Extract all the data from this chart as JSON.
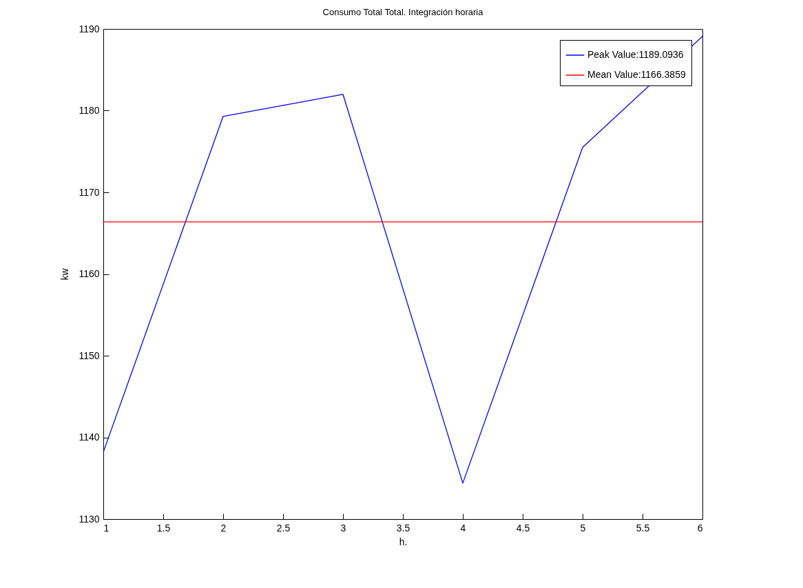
{
  "chart_data": {
    "type": "line",
    "title": "Consumo Total Total. Integración horaria",
    "xlabel": "h.",
    "ylabel": "kw",
    "xlim": [
      1,
      6
    ],
    "xticks": [
      1,
      1.5,
      2,
      2.5,
      3,
      3.5,
      4,
      4.5,
      5,
      5.5,
      6
    ],
    "ylim": [
      1130,
      1190
    ],
    "yticks": [
      1130,
      1140,
      1150,
      1160,
      1170,
      1180,
      1190
    ],
    "x": [
      1,
      2,
      3,
      4,
      5,
      6
    ],
    "series": [
      {
        "name": "Peak Value:1189.0936",
        "color": "#0000ff",
        "values": [
          1138.2,
          1179.3,
          1182.0,
          1134.4,
          1175.5,
          1189.0936
        ]
      },
      {
        "name": "Mean Value:1166.3859",
        "color": "#ff0000",
        "x": [
          1,
          6
        ],
        "values": [
          1166.3859,
          1166.3859
        ]
      }
    ],
    "legend": "top right",
    "grid": false,
    "marker": "none",
    "line_style": "solid"
  }
}
